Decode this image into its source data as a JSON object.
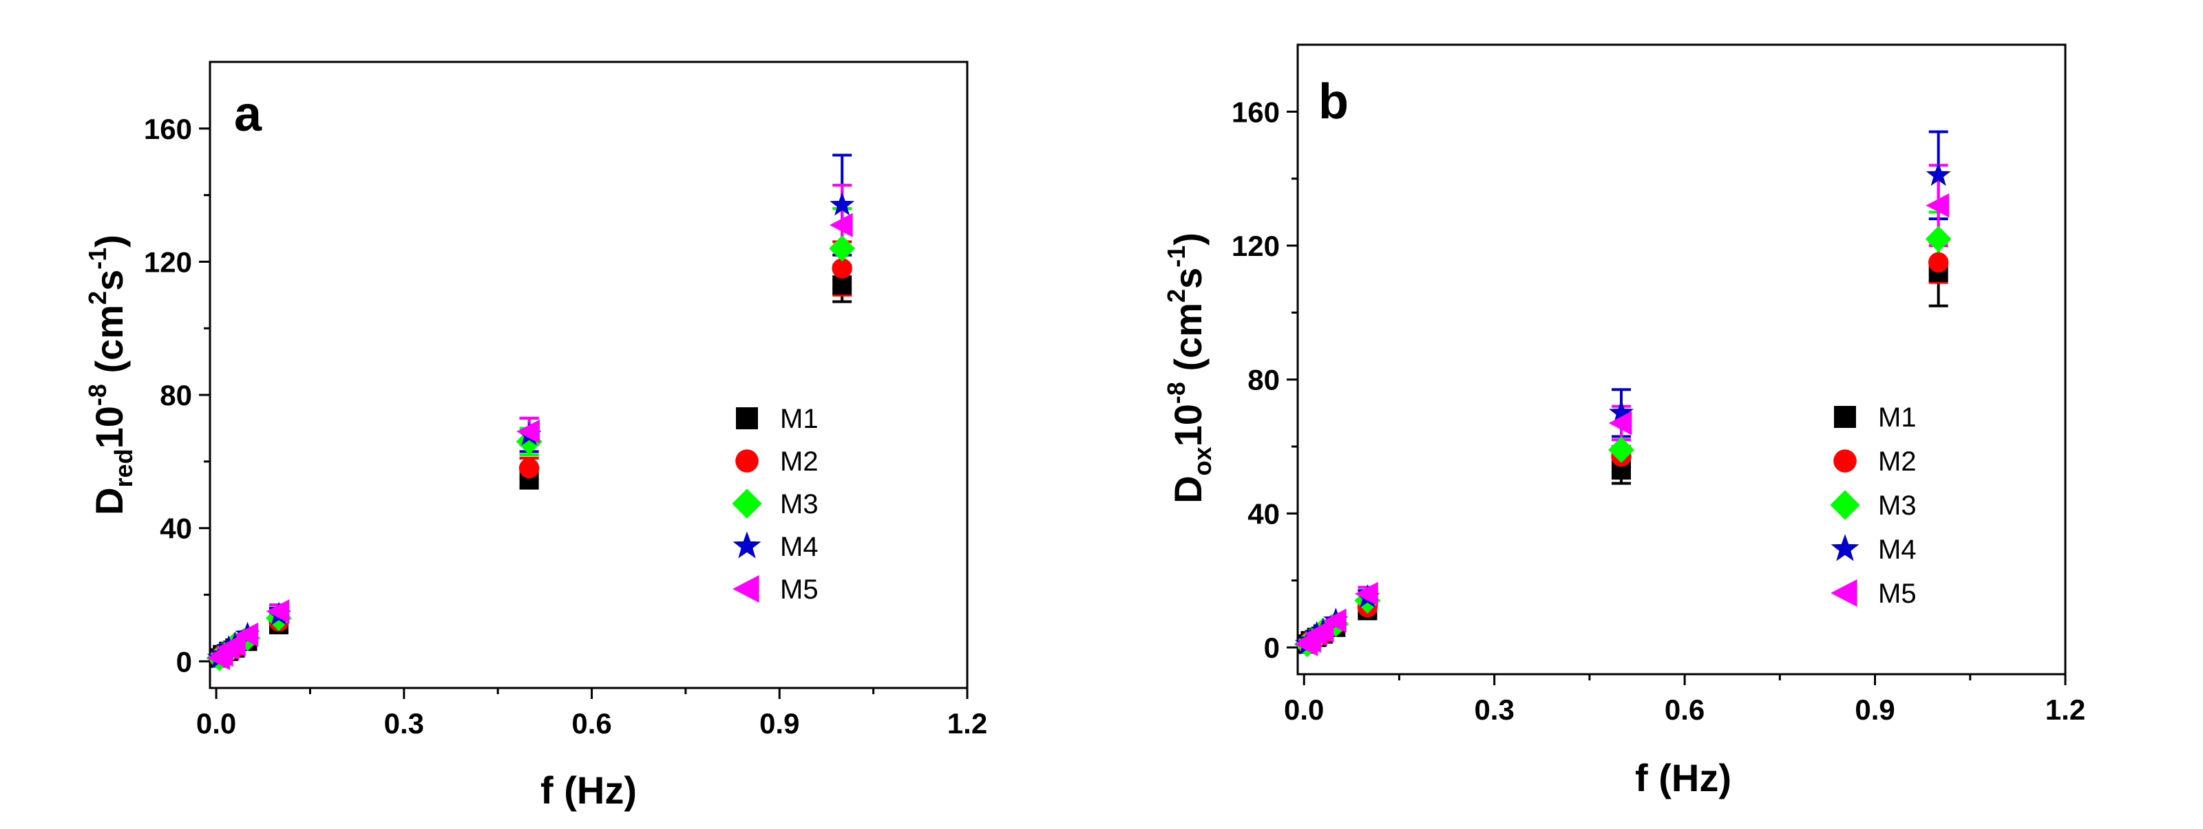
{
  "colors": {
    "M1": "#000000",
    "M2": "#ff0000",
    "M3": "#00ff00",
    "M4": "#0000cc",
    "M5": "#ff00ff"
  },
  "chart_data": [
    {
      "type": "scatter",
      "panel_label": "a",
      "xlabel": "f (Hz)",
      "ylabel": {
        "base": "D",
        "subscript": "red",
        "rest": "10",
        "exp": "-8",
        "units": " (cm",
        "unit_exp1": "2",
        "units2": "s",
        "unit_exp2": "-1",
        "close": ")"
      },
      "xlim": [
        -0.01,
        1.2
      ],
      "ylim": [
        -8,
        180
      ],
      "xticks": [
        0.0,
        0.3,
        0.6,
        0.9,
        1.2
      ],
      "xtick_labels": [
        "0.0",
        "0.3",
        "0.6",
        "0.9",
        "1.2"
      ],
      "yticks": [
        0,
        40,
        80,
        120,
        160
      ],
      "ytick_labels": [
        "0",
        "40",
        "80",
        "120",
        "160"
      ],
      "legend": {
        "position": "right-middle",
        "entries": [
          "M1",
          "M2",
          "M3",
          "M4",
          "M5"
        ]
      },
      "series": [
        {
          "name": "M1",
          "marker": "square",
          "x": [
            0.005,
            0.01,
            0.02,
            0.03,
            0.05,
            0.1,
            0.5,
            1.0
          ],
          "y": [
            1,
            2,
            3,
            4,
            6,
            11,
            55,
            113
          ],
          "err": [
            0,
            0,
            0,
            0,
            0,
            2,
            3,
            5
          ]
        },
        {
          "name": "M2",
          "marker": "circle",
          "x": [
            0.005,
            0.01,
            0.02,
            0.03,
            0.05,
            0.1,
            0.5,
            1.0
          ],
          "y": [
            1,
            2,
            3,
            4,
            7,
            12,
            58,
            118
          ],
          "err": [
            0,
            0,
            0,
            0,
            0,
            2,
            3,
            8
          ]
        },
        {
          "name": "M3",
          "marker": "diamond",
          "x": [
            0.005,
            0.01,
            0.02,
            0.03,
            0.05,
            0.1,
            0.5,
            1.0
          ],
          "y": [
            1,
            2,
            3,
            5,
            7,
            13,
            66,
            124
          ],
          "err": [
            0,
            0,
            0,
            0,
            0,
            2,
            4,
            12
          ]
        },
        {
          "name": "M4",
          "marker": "star",
          "x": [
            0.005,
            0.01,
            0.02,
            0.03,
            0.05,
            0.1,
            0.5,
            1.0
          ],
          "y": [
            1,
            2,
            4,
            5,
            8,
            14,
            68,
            137
          ],
          "err": [
            0,
            0,
            0,
            0,
            0,
            2,
            5,
            15
          ]
        },
        {
          "name": "M5",
          "marker": "triangle-left",
          "x": [
            0.005,
            0.01,
            0.02,
            0.03,
            0.05,
            0.1,
            0.5,
            1.0
          ],
          "y": [
            1,
            2,
            4,
            5,
            8,
            15,
            69,
            131
          ],
          "err": [
            0,
            0,
            0,
            0,
            0,
            2,
            4,
            12
          ]
        }
      ]
    },
    {
      "type": "scatter",
      "panel_label": "b",
      "xlabel": "f (Hz)",
      "ylabel": {
        "base": "D",
        "subscript": "ox",
        "rest": "10",
        "exp": "-8",
        "units": " (cm",
        "unit_exp1": "2",
        "units2": "s",
        "unit_exp2": "-1",
        "close": ")"
      },
      "xlim": [
        -0.01,
        1.2
      ],
      "ylim": [
        -8,
        180
      ],
      "xticks": [
        0.0,
        0.3,
        0.6,
        0.9,
        1.2
      ],
      "xtick_labels": [
        "0.0",
        "0.3",
        "0.6",
        "0.9",
        "1.2"
      ],
      "yticks": [
        0,
        40,
        80,
        120,
        160
      ],
      "ytick_labels": [
        "0",
        "40",
        "80",
        "120",
        "160"
      ],
      "legend": {
        "position": "right-middle",
        "entries": [
          "M1",
          "M2",
          "M3",
          "M4",
          "M5"
        ]
      },
      "series": [
        {
          "name": "M1",
          "marker": "square",
          "x": [
            0.005,
            0.01,
            0.02,
            0.03,
            0.05,
            0.1,
            0.5,
            1.0
          ],
          "y": [
            1,
            2,
            3,
            4,
            6,
            11,
            53,
            112
          ],
          "err": [
            0,
            0,
            0,
            0,
            0,
            2,
            4,
            10
          ]
        },
        {
          "name": "M2",
          "marker": "circle",
          "x": [
            0.005,
            0.01,
            0.02,
            0.03,
            0.05,
            0.1,
            0.5,
            1.0
          ],
          "y": [
            1,
            2,
            3,
            4,
            7,
            12,
            57,
            115
          ],
          "err": [
            0,
            0,
            0,
            0,
            0,
            2,
            3,
            6
          ]
        },
        {
          "name": "M3",
          "marker": "diamond",
          "x": [
            0.005,
            0.01,
            0.02,
            0.03,
            0.05,
            0.1,
            0.5,
            1.0
          ],
          "y": [
            1,
            2,
            3,
            5,
            7,
            14,
            59,
            122
          ],
          "err": [
            0,
            0,
            0,
            0,
            0,
            2,
            4,
            8
          ]
        },
        {
          "name": "M4",
          "marker": "star",
          "x": [
            0.005,
            0.01,
            0.02,
            0.03,
            0.05,
            0.1,
            0.5,
            1.0
          ],
          "y": [
            1,
            2,
            4,
            5,
            8,
            15,
            70,
            141
          ],
          "err": [
            0,
            0,
            0,
            0,
            0,
            2,
            7,
            13
          ]
        },
        {
          "name": "M5",
          "marker": "triangle-left",
          "x": [
            0.005,
            0.01,
            0.02,
            0.03,
            0.05,
            0.1,
            0.5,
            1.0
          ],
          "y": [
            1,
            2,
            4,
            5,
            8,
            16,
            67,
            132
          ],
          "err": [
            0,
            0,
            0,
            0,
            0,
            2,
            5,
            12
          ]
        }
      ]
    }
  ]
}
